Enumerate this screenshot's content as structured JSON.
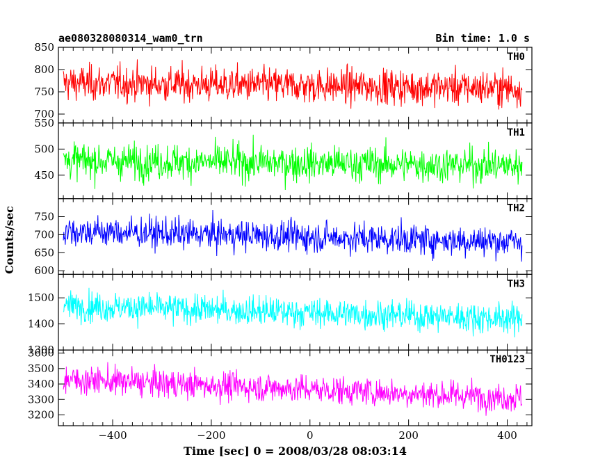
{
  "chart_data": {
    "type": "line",
    "title_left": "ae080328080314_wam0_trn",
    "title_right": "Bin time: 1.0 s",
    "xlabel": "Time [sec] 0 = 2008/03/28 08:03:14",
    "ylabel": "Counts/sec",
    "xlim": [
      -510,
      450
    ],
    "x_range": [
      -500,
      430
    ],
    "x_bin": 1.0,
    "xticks": [
      -400,
      -200,
      0,
      200,
      400
    ],
    "grid": false,
    "panels": [
      {
        "name": "TH0",
        "color": "#ff0000",
        "ylim": [
          680,
          850
        ],
        "yticks": [
          700,
          750,
          800,
          850
        ],
        "start_mean": 770,
        "end_mean": 758,
        "noise": 28
      },
      {
        "name": "TH1",
        "color": "#00ff00",
        "ylim": [
          405,
          550
        ],
        "yticks": [
          450,
          500,
          550
        ],
        "start_mean": 478,
        "end_mean": 468,
        "noise": 24
      },
      {
        "name": "TH2",
        "color": "#0000ff",
        "ylim": [
          590,
          800
        ],
        "yticks": [
          600,
          650,
          700,
          750
        ],
        "start_mean": 710,
        "end_mean": 680,
        "noise": 30
      },
      {
        "name": "TH3",
        "color": "#00ffff",
        "ylim": [
          1300,
          1590
        ],
        "yticks": [
          1300,
          1400,
          1500
        ],
        "start_mean": 1470,
        "end_mean": 1420,
        "noise": 40
      },
      {
        "name": "TH0123",
        "color": "#ff00ff",
        "ylim": [
          3130,
          3620
        ],
        "yticks": [
          3200,
          3300,
          3400,
          3500,
          3600
        ],
        "start_mean": 3430,
        "end_mean": 3310,
        "noise": 65
      }
    ]
  }
}
